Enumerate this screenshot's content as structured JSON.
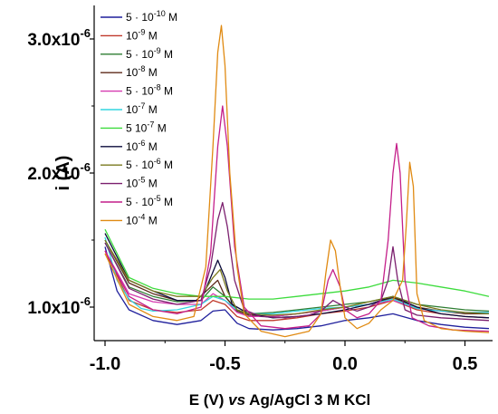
{
  "chart_data": {
    "type": "line",
    "xlabel_prefix": "E (V) ",
    "xlabel_italic": "vs",
    "xlabel_suffix": " Ag/AgCl 3 M KCl",
    "ylabel": "i (A)",
    "xlim": [
      -1.0,
      0.6
    ],
    "ylim": [
      0.75,
      3.25
    ],
    "x_ticks": [
      {
        "v": -1.0,
        "label": "-1.0"
      },
      {
        "v": -0.5,
        "label": "-0.5"
      },
      {
        "v": 0.0,
        "label": "0.0"
      },
      {
        "v": 0.5,
        "label": "0.5"
      }
    ],
    "y_ticks": [
      {
        "v": 1.0,
        "mant": "1.0x10",
        "exp": "-6"
      },
      {
        "v": 2.0,
        "mant": "2.0x10",
        "exp": "-6"
      },
      {
        "v": 3.0,
        "mant": "3.0x10",
        "exp": "-6"
      }
    ],
    "y_unit": "1e-6 A",
    "legend_position": "top-left",
    "series": [
      {
        "name": "5 · 10^-10 M",
        "legend_base": "5 · 10",
        "legend_exp": "-10",
        "legend_unit": " M",
        "color": "#1f1f9c",
        "points": [
          [
            -1.0,
            1.45
          ],
          [
            -0.95,
            1.12
          ],
          [
            -0.9,
            0.98
          ],
          [
            -0.8,
            0.9
          ],
          [
            -0.7,
            0.87
          ],
          [
            -0.6,
            0.9
          ],
          [
            -0.55,
            0.97
          ],
          [
            -0.5,
            0.98
          ],
          [
            -0.45,
            0.88
          ],
          [
            -0.4,
            0.84
          ],
          [
            -0.3,
            0.83
          ],
          [
            -0.2,
            0.84
          ],
          [
            -0.1,
            0.86
          ],
          [
            0.0,
            0.9
          ],
          [
            0.1,
            0.92
          ],
          [
            0.2,
            0.95
          ],
          [
            0.3,
            0.9
          ],
          [
            0.4,
            0.87
          ],
          [
            0.5,
            0.85
          ],
          [
            0.6,
            0.84
          ]
        ]
      },
      {
        "name": "10^-9 M",
        "legend_base": "10",
        "legend_exp": "-9",
        "legend_unit": " M",
        "color": "#c0392b",
        "points": [
          [
            -1.0,
            1.42
          ],
          [
            -0.9,
            1.05
          ],
          [
            -0.8,
            0.98
          ],
          [
            -0.7,
            0.96
          ],
          [
            -0.6,
            0.98
          ],
          [
            -0.55,
            1.05
          ],
          [
            -0.5,
            1.02
          ],
          [
            -0.45,
            0.93
          ],
          [
            -0.4,
            0.9
          ],
          [
            -0.3,
            0.9
          ],
          [
            -0.2,
            0.92
          ],
          [
            -0.1,
            0.95
          ],
          [
            0.0,
            0.97
          ],
          [
            0.1,
            1.0
          ],
          [
            0.2,
            1.05
          ],
          [
            0.3,
            0.98
          ],
          [
            0.4,
            0.95
          ],
          [
            0.5,
            0.93
          ],
          [
            0.6,
            0.92
          ]
        ]
      },
      {
        "name": "5 · 10^-9 M",
        "legend_base": "5 · 10",
        "legend_exp": "-9",
        "legend_unit": " M",
        "color": "#2e7d32",
        "points": [
          [
            -1.0,
            1.48
          ],
          [
            -0.9,
            1.15
          ],
          [
            -0.8,
            1.08
          ],
          [
            -0.7,
            1.04
          ],
          [
            -0.6,
            1.05
          ],
          [
            -0.55,
            1.15
          ],
          [
            -0.5,
            1.08
          ],
          [
            -0.45,
            0.98
          ],
          [
            -0.4,
            0.95
          ],
          [
            -0.3,
            0.96
          ],
          [
            -0.2,
            0.98
          ],
          [
            -0.1,
            1.0
          ],
          [
            0.0,
            1.02
          ],
          [
            0.1,
            1.04
          ],
          [
            0.2,
            1.08
          ],
          [
            0.3,
            1.02
          ],
          [
            0.4,
            1.0
          ],
          [
            0.5,
            0.98
          ],
          [
            0.6,
            0.97
          ]
        ]
      },
      {
        "name": "10^-8 M",
        "legend_base": "10",
        "legend_exp": "-8",
        "legend_unit": " M",
        "color": "#5d2a1a",
        "points": [
          [
            -1.0,
            1.5
          ],
          [
            -0.9,
            1.18
          ],
          [
            -0.8,
            1.1
          ],
          [
            -0.7,
            1.05
          ],
          [
            -0.62,
            1.05
          ],
          [
            -0.56,
            1.15
          ],
          [
            -0.53,
            1.2
          ],
          [
            -0.5,
            1.08
          ],
          [
            -0.45,
            0.97
          ],
          [
            -0.4,
            0.94
          ],
          [
            -0.3,
            0.93
          ],
          [
            -0.2,
            0.95
          ],
          [
            -0.1,
            0.97
          ],
          [
            0.0,
            1.0
          ],
          [
            0.1,
            1.02
          ],
          [
            0.2,
            1.07
          ],
          [
            0.3,
            1.0
          ],
          [
            0.4,
            0.97
          ],
          [
            0.5,
            0.95
          ],
          [
            0.6,
            0.95
          ]
        ]
      },
      {
        "name": "5 · 10^-8 M",
        "legend_base": "5 · 10",
        "legend_exp": "-8",
        "legend_unit": " M",
        "color": "#d63ab0",
        "points": [
          [
            -1.0,
            1.42
          ],
          [
            -0.9,
            1.1
          ],
          [
            -0.8,
            1.04
          ],
          [
            -0.7,
            1.02
          ],
          [
            -0.6,
            1.02
          ],
          [
            -0.55,
            1.1
          ],
          [
            -0.5,
            1.05
          ],
          [
            -0.45,
            0.96
          ],
          [
            -0.4,
            0.93
          ],
          [
            -0.3,
            0.93
          ],
          [
            -0.2,
            0.95
          ],
          [
            -0.1,
            0.97
          ],
          [
            0.0,
            1.0
          ],
          [
            0.1,
            1.02
          ],
          [
            0.2,
            1.05
          ],
          [
            0.3,
            0.99
          ],
          [
            0.4,
            0.97
          ],
          [
            0.5,
            0.96
          ],
          [
            0.6,
            0.96
          ]
        ]
      },
      {
        "name": "10^-7 M",
        "legend_base": "10",
        "legend_exp": "-7",
        "legend_unit": " M",
        "color": "#33d6e0",
        "points": [
          [
            -1.0,
            1.52
          ],
          [
            -0.95,
            1.2
          ],
          [
            -0.9,
            1.06
          ],
          [
            -0.85,
            0.99
          ],
          [
            -0.8,
            0.97
          ],
          [
            -0.7,
            0.98
          ],
          [
            -0.6,
            1.02
          ],
          [
            -0.55,
            1.08
          ],
          [
            -0.5,
            1.05
          ],
          [
            -0.45,
            0.98
          ],
          [
            -0.4,
            0.95
          ],
          [
            -0.3,
            0.95
          ],
          [
            -0.2,
            0.97
          ],
          [
            -0.1,
            0.99
          ],
          [
            0.0,
            1.0
          ],
          [
            0.1,
            1.02
          ],
          [
            0.2,
            1.06
          ],
          [
            0.3,
            0.99
          ],
          [
            0.4,
            0.97
          ],
          [
            0.5,
            0.96
          ],
          [
            0.6,
            0.96
          ]
        ]
      },
      {
        "name": "5 10^-7 M",
        "legend_base": "5   10",
        "legend_exp": "-7",
        "legend_unit": " M",
        "color": "#3ddc3d",
        "points": [
          [
            -1.0,
            1.58
          ],
          [
            -0.9,
            1.22
          ],
          [
            -0.8,
            1.14
          ],
          [
            -0.7,
            1.1
          ],
          [
            -0.6,
            1.08
          ],
          [
            -0.5,
            1.08
          ],
          [
            -0.4,
            1.06
          ],
          [
            -0.3,
            1.06
          ],
          [
            -0.2,
            1.08
          ],
          [
            -0.1,
            1.1
          ],
          [
            0.0,
            1.12
          ],
          [
            0.1,
            1.15
          ],
          [
            0.2,
            1.2
          ],
          [
            0.3,
            1.18
          ],
          [
            0.4,
            1.15
          ],
          [
            0.5,
            1.12
          ],
          [
            0.6,
            1.08
          ]
        ]
      },
      {
        "name": "10^-6 M",
        "legend_base": "10",
        "legend_exp": "-6",
        "legend_unit": " M",
        "color": "#0b0b3b",
        "points": [
          [
            -1.0,
            1.55
          ],
          [
            -0.9,
            1.2
          ],
          [
            -0.8,
            1.12
          ],
          [
            -0.7,
            1.05
          ],
          [
            -0.6,
            1.05
          ],
          [
            -0.56,
            1.22
          ],
          [
            -0.53,
            1.35
          ],
          [
            -0.5,
            1.22
          ],
          [
            -0.47,
            1.02
          ],
          [
            -0.4,
            0.95
          ],
          [
            -0.3,
            0.92
          ],
          [
            -0.2,
            0.93
          ],
          [
            -0.1,
            0.95
          ],
          [
            0.0,
            0.98
          ],
          [
            0.1,
            1.02
          ],
          [
            0.2,
            1.08
          ],
          [
            0.3,
            1.0
          ],
          [
            0.4,
            0.95
          ],
          [
            0.5,
            0.93
          ],
          [
            0.6,
            0.92
          ]
        ]
      },
      {
        "name": "5 · 10^-6 M",
        "legend_base": "5 · 10",
        "legend_exp": "-6",
        "legend_unit": " M",
        "color": "#7a7a1e",
        "points": [
          [
            -1.0,
            1.5
          ],
          [
            -0.9,
            1.2
          ],
          [
            -0.8,
            1.12
          ],
          [
            -0.7,
            1.08
          ],
          [
            -0.6,
            1.08
          ],
          [
            -0.55,
            1.22
          ],
          [
            -0.52,
            1.28
          ],
          [
            -0.49,
            1.12
          ],
          [
            -0.45,
            0.98
          ],
          [
            -0.4,
            0.95
          ],
          [
            -0.3,
            0.94
          ],
          [
            -0.2,
            0.95
          ],
          [
            -0.1,
            0.98
          ],
          [
            0.0,
            1.0
          ],
          [
            0.1,
            1.04
          ],
          [
            0.2,
            1.08
          ],
          [
            0.3,
            1.02
          ],
          [
            0.4,
            0.98
          ],
          [
            0.5,
            0.96
          ],
          [
            0.6,
            0.95
          ]
        ]
      },
      {
        "name": "10^-5 M",
        "legend_base": "10",
        "legend_exp": "-5",
        "legend_unit": " M",
        "color": "#7b1f6e",
        "points": [
          [
            -1.0,
            1.48
          ],
          [
            -0.9,
            1.14
          ],
          [
            -0.8,
            1.06
          ],
          [
            -0.7,
            1.02
          ],
          [
            -0.6,
            1.05
          ],
          [
            -0.56,
            1.3
          ],
          [
            -0.53,
            1.65
          ],
          [
            -0.51,
            1.78
          ],
          [
            -0.49,
            1.6
          ],
          [
            -0.46,
            1.2
          ],
          [
            -0.42,
            0.98
          ],
          [
            -0.35,
            0.93
          ],
          [
            -0.25,
            0.92
          ],
          [
            -0.15,
            0.94
          ],
          [
            -0.1,
            0.97
          ],
          [
            -0.05,
            1.05
          ],
          [
            0.0,
            1.0
          ],
          [
            0.05,
            0.97
          ],
          [
            0.1,
            1.0
          ],
          [
            0.15,
            1.05
          ],
          [
            0.18,
            1.2
          ],
          [
            0.2,
            1.45
          ],
          [
            0.22,
            1.2
          ],
          [
            0.25,
            0.98
          ],
          [
            0.3,
            0.94
          ],
          [
            0.4,
            0.92
          ],
          [
            0.5,
            0.91
          ],
          [
            0.6,
            0.9
          ]
        ]
      },
      {
        "name": "5 · 10^-5 M",
        "legend_base": "5 · 10",
        "legend_exp": "-5",
        "legend_unit": " M",
        "color": "#c41f8a",
        "points": [
          [
            -1.0,
            1.42
          ],
          [
            -0.9,
            1.08
          ],
          [
            -0.8,
            0.98
          ],
          [
            -0.7,
            0.95
          ],
          [
            -0.6,
            1.0
          ],
          [
            -0.56,
            1.4
          ],
          [
            -0.53,
            2.2
          ],
          [
            -0.51,
            2.5
          ],
          [
            -0.49,
            2.2
          ],
          [
            -0.46,
            1.45
          ],
          [
            -0.42,
            1.0
          ],
          [
            -0.35,
            0.86
          ],
          [
            -0.25,
            0.84
          ],
          [
            -0.15,
            0.86
          ],
          [
            -0.1,
            0.95
          ],
          [
            -0.07,
            1.2
          ],
          [
            -0.05,
            1.28
          ],
          [
            -0.02,
            1.15
          ],
          [
            0.0,
            0.98
          ],
          [
            0.05,
            0.92
          ],
          [
            0.1,
            0.95
          ],
          [
            0.15,
            1.05
          ],
          [
            0.18,
            1.5
          ],
          [
            0.2,
            2.0
          ],
          [
            0.215,
            2.22
          ],
          [
            0.23,
            2.0
          ],
          [
            0.25,
            1.2
          ],
          [
            0.28,
            0.92
          ],
          [
            0.35,
            0.86
          ],
          [
            0.45,
            0.83
          ],
          [
            0.6,
            0.82
          ]
        ]
      },
      {
        "name": "10^-4 M",
        "legend_base": "10",
        "legend_exp": "-4",
        "legend_unit": " M",
        "color": "#e08a12",
        "points": [
          [
            -1.0,
            1.4
          ],
          [
            -0.9,
            1.02
          ],
          [
            -0.8,
            0.93
          ],
          [
            -0.7,
            0.9
          ],
          [
            -0.63,
            0.93
          ],
          [
            -0.58,
            1.3
          ],
          [
            -0.55,
            2.2
          ],
          [
            -0.53,
            2.9
          ],
          [
            -0.515,
            3.1
          ],
          [
            -0.5,
            2.8
          ],
          [
            -0.48,
            2.0
          ],
          [
            -0.45,
            1.3
          ],
          [
            -0.42,
            0.95
          ],
          [
            -0.35,
            0.82
          ],
          [
            -0.25,
            0.78
          ],
          [
            -0.15,
            0.82
          ],
          [
            -0.1,
            0.95
          ],
          [
            -0.08,
            1.25
          ],
          [
            -0.06,
            1.5
          ],
          [
            -0.04,
            1.42
          ],
          [
            -0.02,
            1.15
          ],
          [
            0.0,
            0.92
          ],
          [
            0.05,
            0.84
          ],
          [
            0.1,
            0.88
          ],
          [
            0.15,
            0.98
          ],
          [
            0.2,
            1.05
          ],
          [
            0.24,
            1.2
          ],
          [
            0.255,
            1.6
          ],
          [
            0.27,
            2.08
          ],
          [
            0.285,
            1.9
          ],
          [
            0.3,
            1.1
          ],
          [
            0.33,
            0.9
          ],
          [
            0.4,
            0.84
          ],
          [
            0.5,
            0.82
          ],
          [
            0.6,
            0.81
          ]
        ]
      }
    ]
  }
}
